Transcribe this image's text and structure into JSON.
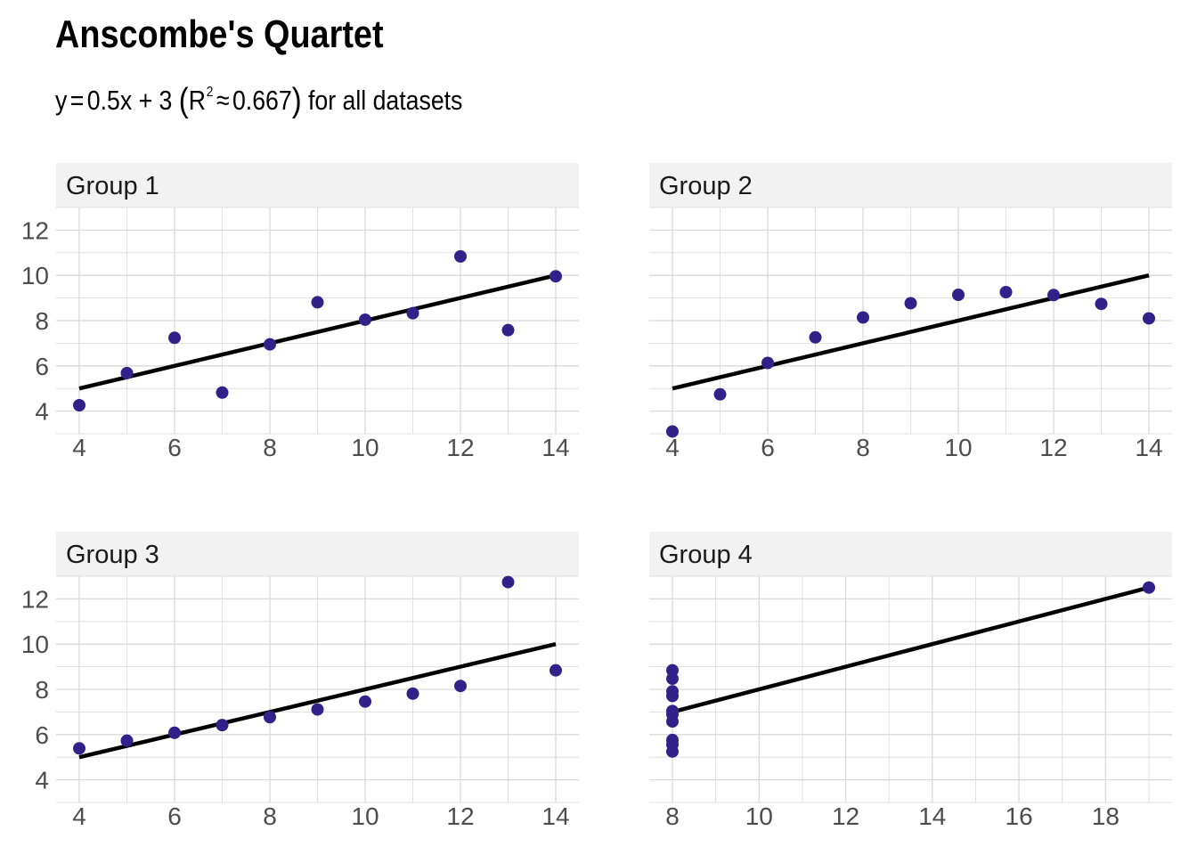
{
  "title": "Anscombe's Quartet",
  "subtitle": {
    "lhs": "y",
    "eq": "=",
    "rhs": "0.5x + 3",
    "r_label": "R",
    "r_exp": "2",
    "approx": "≈",
    "r_value": "0.667",
    "suffix": "for all datasets"
  },
  "colors": {
    "point": "#33218a",
    "line": "#000000",
    "strip": "#f2f2f2",
    "grid": "#d9d9d9"
  },
  "chart_data": [
    {
      "type": "scatter",
      "panel": "Group 1",
      "x": [
        10,
        8,
        13,
        9,
        11,
        14,
        6,
        4,
        12,
        7,
        5
      ],
      "y": [
        8.04,
        6.95,
        7.58,
        8.81,
        8.33,
        9.96,
        7.24,
        4.26,
        10.84,
        4.82,
        5.68
      ],
      "fit": {
        "slope": 0.5,
        "intercept": 3
      },
      "xlim": [
        4,
        14
      ],
      "ylim": [
        3,
        13
      ],
      "xticks": [
        4,
        6,
        8,
        10,
        12,
        14
      ],
      "yticks": [
        4,
        6,
        8,
        10,
        12
      ]
    },
    {
      "type": "scatter",
      "panel": "Group 2",
      "x": [
        10,
        8,
        13,
        9,
        11,
        14,
        6,
        4,
        12,
        7,
        5
      ],
      "y": [
        9.14,
        8.14,
        8.74,
        8.77,
        9.26,
        8.1,
        6.13,
        3.1,
        9.13,
        7.26,
        4.74
      ],
      "fit": {
        "slope": 0.5,
        "intercept": 3
      },
      "xlim": [
        4,
        14
      ],
      "ylim": [
        3,
        13
      ],
      "xticks": [
        4,
        6,
        8,
        10,
        12,
        14
      ],
      "yticks": [
        4,
        6,
        8,
        10,
        12
      ]
    },
    {
      "type": "scatter",
      "panel": "Group 3",
      "x": [
        10,
        8,
        13,
        9,
        11,
        14,
        6,
        4,
        12,
        7,
        5
      ],
      "y": [
        7.46,
        6.77,
        12.74,
        7.11,
        7.81,
        8.84,
        6.08,
        5.39,
        8.15,
        6.42,
        5.73
      ],
      "fit": {
        "slope": 0.5,
        "intercept": 3
      },
      "xlim": [
        4,
        14
      ],
      "ylim": [
        3,
        13
      ],
      "xticks": [
        4,
        6,
        8,
        10,
        12,
        14
      ],
      "yticks": [
        4,
        6,
        8,
        10,
        12
      ]
    },
    {
      "type": "scatter",
      "panel": "Group 4",
      "x": [
        8,
        8,
        8,
        8,
        8,
        8,
        8,
        19,
        8,
        8,
        8
      ],
      "y": [
        6.58,
        5.76,
        7.71,
        8.84,
        8.47,
        7.04,
        5.25,
        12.5,
        5.56,
        7.91,
        6.89
      ],
      "fit": {
        "slope": 0.5,
        "intercept": 3
      },
      "xlim": [
        8,
        19
      ],
      "ylim": [
        3,
        13
      ],
      "xticks": [
        8,
        10,
        12,
        14,
        16,
        18
      ],
      "yticks": [
        4,
        6,
        8,
        10,
        12
      ]
    }
  ]
}
